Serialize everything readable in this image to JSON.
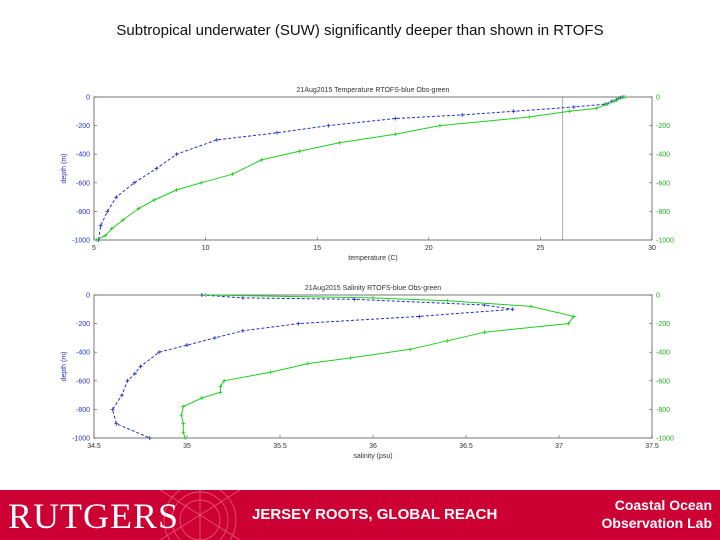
{
  "slide": {
    "title": "Subtropical underwater (SUW) significantly deeper than shown in RTOFS"
  },
  "footer": {
    "brand": "RUTGERS",
    "tagline": "JERSEY ROOTS, GLOBAL REACH",
    "lab_line1": "Coastal Ocean",
    "lab_line2": "Observation Lab",
    "background": "#cc0033"
  },
  "chart_data": [
    {
      "type": "line",
      "title": "21Aug2015  Temperature    RTOFS-blue     Obs-green",
      "xlabel": "temperature (C)",
      "ylabel": "depth (m)",
      "xlim": [
        5,
        30
      ],
      "ylim": [
        -1000,
        0
      ],
      "xticks": [
        5,
        10,
        15,
        20,
        25,
        30
      ],
      "yticks": [
        0,
        -200,
        -400,
        -600,
        -800,
        -1000
      ],
      "right_yticks": [
        0,
        -200,
        -400,
        -600,
        -800,
        -1000
      ],
      "vline_x": 26,
      "series": [
        {
          "color": "#2233cc",
          "dashed": true,
          "points": [
            [
              28.7,
              0
            ],
            [
              28.6,
              -5
            ],
            [
              28.5,
              -10
            ],
            [
              28.4,
              -20
            ],
            [
              28.2,
              -30
            ],
            [
              27.9,
              -50
            ],
            [
              26.5,
              -70
            ],
            [
              23.8,
              -100
            ],
            [
              21.5,
              -125
            ],
            [
              18.5,
              -150
            ],
            [
              15.5,
              -200
            ],
            [
              13.2,
              -250
            ],
            [
              10.5,
              -300
            ],
            [
              8.7,
              -400
            ],
            [
              7.8,
              -500
            ],
            [
              6.8,
              -600
            ],
            [
              6.0,
              -700
            ],
            [
              5.6,
              -800
            ],
            [
              5.3,
              -900
            ],
            [
              5.2,
              -1000
            ]
          ]
        },
        {
          "color": "#22cc22",
          "dashed": false,
          "points": [
            [
              28.8,
              0
            ],
            [
              28.5,
              -10
            ],
            [
              28.3,
              -30
            ],
            [
              28.0,
              -50
            ],
            [
              27.5,
              -80
            ],
            [
              26.3,
              -100
            ],
            [
              24.5,
              -140
            ],
            [
              20.5,
              -200
            ],
            [
              18.5,
              -260
            ],
            [
              16.0,
              -320
            ],
            [
              14.2,
              -380
            ],
            [
              12.5,
              -440
            ],
            [
              11.2,
              -540
            ],
            [
              9.8,
              -600
            ],
            [
              8.7,
              -650
            ],
            [
              7.7,
              -720
            ],
            [
              7.0,
              -780
            ],
            [
              6.3,
              -860
            ],
            [
              5.8,
              -920
            ],
            [
              5.5,
              -970
            ],
            [
              5.1,
              -1000
            ]
          ]
        }
      ]
    },
    {
      "type": "line",
      "title": "21Aug2015  Salinity    RTOFS-blue     Obs-green",
      "xlabel": "salinity (psu)",
      "ylabel": "depth (m)",
      "xlim": [
        34.5,
        37.5
      ],
      "ylim": [
        -1000,
        0
      ],
      "xticks": [
        34.5,
        35,
        35.5,
        36,
        36.5,
        37,
        37.5
      ],
      "right_yticks": [
        0,
        -200,
        -400,
        -600,
        -800,
        -1000
      ],
      "yticks": [
        0,
        -200,
        -400,
        -600,
        -800,
        -1000
      ],
      "series": [
        {
          "color": "#2233cc",
          "dashed": true,
          "points": [
            [
              35.08,
              0
            ],
            [
              35.3,
              -20
            ],
            [
              35.9,
              -30
            ],
            [
              36.6,
              -70
            ],
            [
              36.75,
              -100
            ],
            [
              36.25,
              -150
            ],
            [
              35.6,
              -200
            ],
            [
              35.3,
              -250
            ],
            [
              35.15,
              -300
            ],
            [
              35.0,
              -350
            ],
            [
              34.85,
              -400
            ],
            [
              34.75,
              -500
            ],
            [
              34.72,
              -550
            ],
            [
              34.68,
              -600
            ],
            [
              34.65,
              -700
            ],
            [
              34.6,
              -800
            ],
            [
              34.62,
              -900
            ],
            [
              34.8,
              -1000
            ]
          ]
        },
        {
          "color": "#22cc22",
          "dashed": false,
          "points": [
            [
              35.1,
              0
            ],
            [
              36.0,
              -20
            ],
            [
              36.4,
              -40
            ],
            [
              36.85,
              -80
            ],
            [
              37.08,
              -150
            ],
            [
              37.05,
              -200
            ],
            [
              36.6,
              -260
            ],
            [
              36.4,
              -320
            ],
            [
              36.2,
              -380
            ],
            [
              35.88,
              -440
            ],
            [
              35.65,
              -480
            ],
            [
              35.45,
              -540
            ],
            [
              35.2,
              -600
            ],
            [
              35.18,
              -640
            ],
            [
              35.18,
              -680
            ],
            [
              35.08,
              -720
            ],
            [
              34.98,
              -780
            ],
            [
              34.97,
              -840
            ],
            [
              34.98,
              -900
            ],
            [
              34.98,
              -960
            ],
            [
              34.99,
              -1000
            ]
          ]
        }
      ]
    }
  ]
}
